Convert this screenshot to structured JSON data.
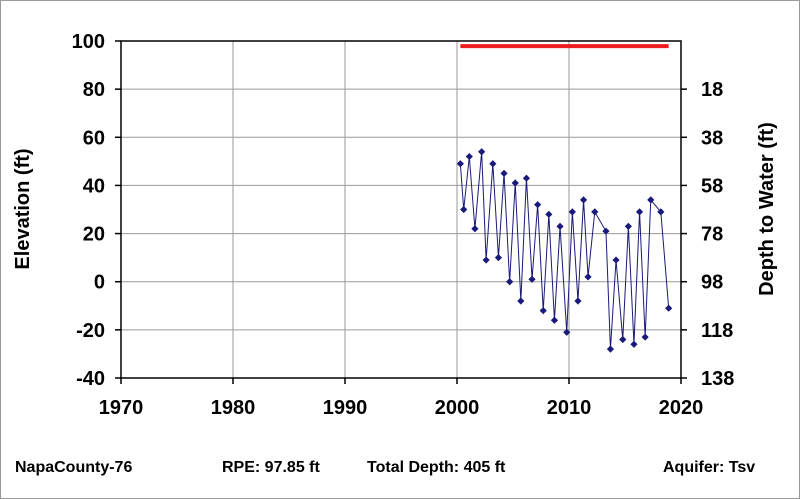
{
  "chart_data": {
    "type": "line",
    "title": "",
    "xlabel": "",
    "ylabel": "Elevation (ft)",
    "y2label": "Depth to Water (ft)",
    "xlim": [
      1970,
      2020
    ],
    "ylim": [
      -40,
      100
    ],
    "x_ticks": [
      "1970",
      "1980",
      "1990",
      "2000",
      "2010",
      "2020"
    ],
    "y_ticks": [
      "100",
      "80",
      "60",
      "40",
      "20",
      "0",
      "-20",
      "-40"
    ],
    "y2_ticks": [
      "18",
      "38",
      "58",
      "78",
      "98",
      "118",
      "138"
    ],
    "grid": true,
    "colors": {
      "series": "#1a1a7a",
      "rpe_line": "#ee1c1c"
    },
    "reference_line": {
      "name": "RPE",
      "y": 97.85,
      "x_range": [
        2000.3,
        2018.9
      ]
    },
    "series": [
      {
        "marker": "diamond",
        "x": [
          2000.3,
          2000.6,
          2001.1,
          2001.6,
          2002.2,
          2002.6,
          2003.2,
          2003.7,
          2004.2,
          2004.7,
          2005.2,
          2005.7,
          2006.2,
          2006.7,
          2007.2,
          2007.7,
          2008.2,
          2008.7,
          2009.2,
          2009.8,
          2010.3,
          2010.8,
          2011.3,
          2011.7,
          2012.3,
          2013.3,
          2013.7,
          2014.2,
          2014.8,
          2015.3,
          2015.8,
          2016.3,
          2016.8,
          2017.3,
          2018.2,
          2018.9
        ],
        "y": [
          49,
          30,
          52,
          22,
          54,
          9,
          49,
          10,
          45,
          0,
          41,
          -8,
          43,
          1,
          32,
          -12,
          28,
          -16,
          23,
          -21,
          29,
          -8,
          34,
          2,
          29,
          21,
          -28,
          9,
          -24,
          23,
          -26,
          29,
          -23,
          34,
          29,
          -11
        ]
      }
    ]
  },
  "footer": {
    "well_id": "NapaCounty-76",
    "rpe": "RPE: 97.85 ft",
    "total_depth": "Total Depth: 405 ft",
    "aquifer": "Aquifer: Tsv"
  }
}
